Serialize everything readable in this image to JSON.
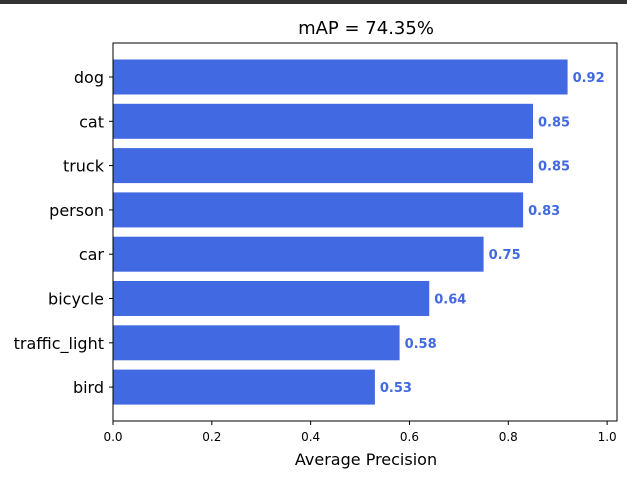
{
  "chart_data": {
    "type": "bar",
    "orientation": "horizontal",
    "title": "mAP = 74.35%",
    "xlabel": "Average Precision",
    "ylabel": "",
    "xlim": [
      0,
      1.02
    ],
    "x_ticks": [
      "0.0",
      "0.2",
      "0.4",
      "0.6",
      "0.8",
      "1.0"
    ],
    "x_tick_values": [
      0,
      0.2,
      0.4,
      0.6,
      0.8,
      1.0
    ],
    "categories": [
      "dog",
      "cat",
      "truck",
      "person",
      "car",
      "bicycle",
      "traffic_light",
      "bird"
    ],
    "values": [
      0.92,
      0.85,
      0.85,
      0.83,
      0.75,
      0.64,
      0.58,
      0.53
    ],
    "value_labels": [
      "0.92",
      "0.85",
      "0.85",
      "0.83",
      "0.75",
      "0.64",
      "0.58",
      "0.53"
    ],
    "grid": false,
    "legend": "none",
    "colors": {
      "bar": "#4169e1",
      "label": "#4169e1",
      "axis": "#000000"
    }
  }
}
